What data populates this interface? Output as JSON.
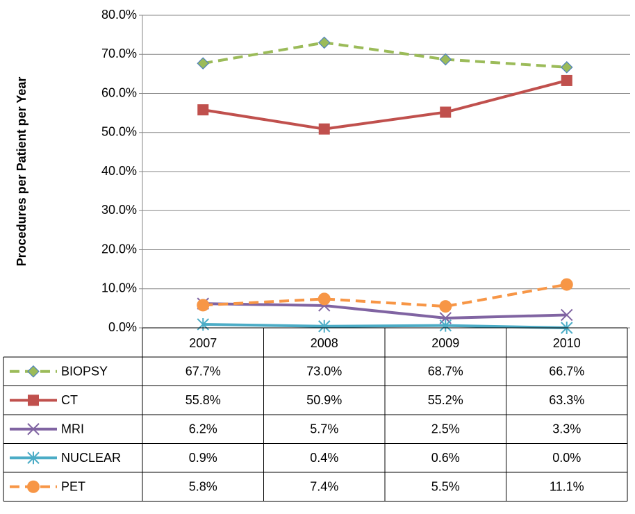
{
  "chart_data": {
    "type": "line",
    "y_label": "Procedures per Patient per Year",
    "categories": [
      "2007",
      "2008",
      "2009",
      "2010"
    ],
    "series": [
      {
        "name": "BIOPSY",
        "color": "#9bbb59",
        "dashed": true,
        "marker": "diamond",
        "marker_edge": "#4f81bd",
        "values": [
          67.7,
          73.0,
          68.7,
          66.7
        ],
        "value_labels": [
          "67.7%",
          "73.0%",
          "68.7%",
          "66.7%"
        ]
      },
      {
        "name": "CT",
        "color": "#c0504d",
        "dashed": false,
        "marker": "square",
        "marker_edge": "#c0504d",
        "values": [
          55.8,
          50.9,
          55.2,
          63.3
        ],
        "value_labels": [
          "55.8%",
          "50.9%",
          "55.2%",
          "63.3%"
        ]
      },
      {
        "name": "MRI",
        "color": "#8064a2",
        "dashed": false,
        "marker": "x",
        "marker_edge": "#8064a2",
        "values": [
          6.2,
          5.7,
          2.5,
          3.3
        ],
        "value_labels": [
          "6.2%",
          "5.7%",
          "2.5%",
          "3.3%"
        ]
      },
      {
        "name": "NUCLEAR",
        "color": "#4bacc6",
        "dashed": false,
        "marker": "star",
        "marker_edge": "#4bacc6",
        "values": [
          0.9,
          0.4,
          0.6,
          0.0
        ],
        "value_labels": [
          "0.9%",
          "0.4%",
          "0.6%",
          "0.0%"
        ]
      },
      {
        "name": "PET",
        "color": "#f79646",
        "dashed": true,
        "marker": "circle",
        "marker_edge": "#f79646",
        "values": [
          5.8,
          7.4,
          5.5,
          11.1
        ],
        "value_labels": [
          "5.8%",
          "7.4%",
          "5.5%",
          "11.1%"
        ]
      }
    ],
    "ylim": [
      0,
      80
    ],
    "yticks": [
      {
        "value": 0,
        "label": "0.0%"
      },
      {
        "value": 10,
        "label": "10.0%"
      },
      {
        "value": 20,
        "label": "20.0%"
      },
      {
        "value": 30,
        "label": "30.0%"
      },
      {
        "value": 40,
        "label": "40.0%"
      },
      {
        "value": 50,
        "label": "50.0%"
      },
      {
        "value": 60,
        "label": "60.0%"
      },
      {
        "value": 70,
        "label": "70.0%"
      },
      {
        "value": 80,
        "label": "80.0%"
      }
    ],
    "grid": true
  }
}
